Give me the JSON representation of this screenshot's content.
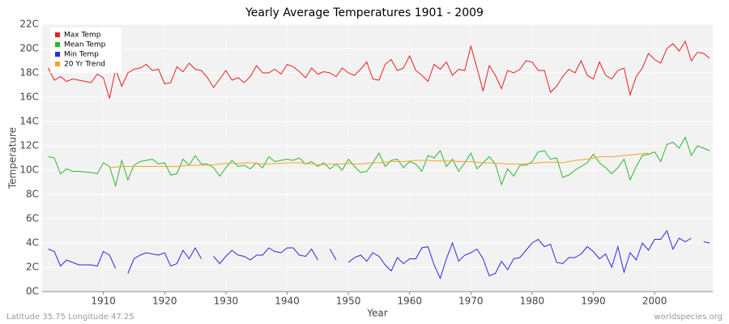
{
  "chart_data": {
    "type": "line",
    "title": "Yearly Average Temperatures 1901 - 2009",
    "x_label": "Year",
    "y_label": "Temperature",
    "footer_left": "Latitude 35.75 Longitude 47.25",
    "footer_right": "worldspecies.org",
    "x": [
      1901,
      1902,
      1903,
      1904,
      1905,
      1906,
      1907,
      1908,
      1909,
      1910,
      1911,
      1912,
      1913,
      1914,
      1915,
      1916,
      1917,
      1918,
      1919,
      1920,
      1921,
      1922,
      1923,
      1924,
      1925,
      1926,
      1927,
      1928,
      1929,
      1930,
      1931,
      1932,
      1933,
      1934,
      1935,
      1936,
      1937,
      1938,
      1939,
      1940,
      1941,
      1942,
      1943,
      1944,
      1945,
      1946,
      1947,
      1948,
      1949,
      1950,
      1951,
      1952,
      1953,
      1954,
      1955,
      1956,
      1957,
      1958,
      1959,
      1960,
      1961,
      1962,
      1963,
      1964,
      1965,
      1966,
      1967,
      1968,
      1969,
      1970,
      1971,
      1972,
      1973,
      1974,
      1975,
      1976,
      1977,
      1978,
      1979,
      1980,
      1981,
      1982,
      1983,
      1984,
      1985,
      1986,
      1987,
      1988,
      1989,
      1990,
      1991,
      1992,
      1993,
      1994,
      1995,
      1996,
      1997,
      1998,
      1999,
      2000,
      2001,
      2002,
      2003,
      2004,
      2005,
      2006,
      2007,
      2008,
      2009
    ],
    "xlim": [
      1900,
      2009.5
    ],
    "xticks": [
      1910,
      1920,
      1930,
      1940,
      1950,
      1960,
      1970,
      1980,
      1990,
      2000
    ],
    "ylim": [
      0,
      22
    ],
    "yticks": [
      {
        "value": 0,
        "label": "0C"
      },
      {
        "value": 2,
        "label": "2C"
      },
      {
        "value": 4,
        "label": "4C"
      },
      {
        "value": 6,
        "label": "6C"
      },
      {
        "value": 8,
        "label": "8C"
      },
      {
        "value": 10,
        "label": "10C"
      },
      {
        "value": 12,
        "label": "12C"
      },
      {
        "value": 14,
        "label": "14C"
      },
      {
        "value": 16,
        "label": "16C"
      },
      {
        "value": 18,
        "label": "18C"
      },
      {
        "value": 20,
        "label": "20C"
      },
      {
        "value": 22,
        "label": "22C"
      }
    ],
    "grid": true,
    "legend": "top-left",
    "series": [
      {
        "name": "Max Temp",
        "color": "#e8201f",
        "values": [
          18.4,
          17.4,
          17.7,
          17.3,
          17.5,
          17.4,
          17.3,
          17.2,
          17.9,
          17.6,
          15.9,
          18.3,
          16.9,
          18.0,
          18.3,
          18.4,
          18.7,
          18.2,
          18.3,
          17.1,
          17.2,
          18.5,
          18.1,
          18.8,
          18.3,
          18.2,
          17.6,
          16.8,
          17.5,
          18.2,
          17.4,
          17.6,
          17.2,
          17.7,
          18.6,
          18.0,
          18.0,
          18.3,
          17.9,
          18.7,
          18.5,
          18.1,
          17.6,
          18.4,
          17.9,
          18.1,
          18.0,
          17.7,
          18.4,
          18.0,
          17.8,
          18.3,
          18.9,
          17.5,
          17.4,
          18.7,
          19.1,
          18.2,
          18.4,
          19.4,
          18.2,
          17.8,
          17.3,
          18.7,
          18.3,
          18.9,
          17.8,
          18.3,
          18.2,
          20.2,
          18.4,
          16.5,
          18.6,
          17.8,
          16.7,
          18.2,
          18.0,
          18.3,
          19.0,
          18.9,
          18.2,
          18.2,
          16.4,
          16.9,
          17.7,
          18.3,
          18.0,
          19.0,
          17.8,
          17.5,
          18.9,
          17.8,
          17.5,
          18.2,
          18.4,
          16.2,
          17.7,
          18.4,
          19.6,
          19.1,
          18.8,
          20.0,
          20.4,
          19.8,
          20.6,
          19.0,
          19.7,
          19.6,
          19.2
        ]
      },
      {
        "name": "Mean Temp",
        "color": "#2db82d",
        "values": [
          11.1,
          11.0,
          9.7,
          10.1,
          9.9,
          9.9,
          9.85,
          9.8,
          9.7,
          10.6,
          10.3,
          8.7,
          10.8,
          9.2,
          10.4,
          10.7,
          10.8,
          10.9,
          10.5,
          10.6,
          9.6,
          9.7,
          10.9,
          10.4,
          11.2,
          10.5,
          10.5,
          10.2,
          9.5,
          10.2,
          10.8,
          10.3,
          10.4,
          10.1,
          10.6,
          10.2,
          11.1,
          10.7,
          10.8,
          10.9,
          10.8,
          11.0,
          10.5,
          10.7,
          10.3,
          10.6,
          10.1,
          10.5,
          10.0,
          10.9,
          10.3,
          9.8,
          9.9,
          10.6,
          11.4,
          10.3,
          10.8,
          10.9,
          10.2,
          10.7,
          10.5,
          9.9,
          11.2,
          11.0,
          11.6,
          10.3,
          10.9,
          9.9,
          10.6,
          11.4,
          10.1,
          10.6,
          11.1,
          10.5,
          8.8,
          10.1,
          9.5,
          10.4,
          10.4,
          10.7,
          11.5,
          11.6,
          10.9,
          11.0,
          9.4,
          9.6,
          10.0,
          10.3,
          10.6,
          11.3,
          10.6,
          10.2,
          9.7,
          10.2,
          10.9,
          9.2,
          10.3,
          11.2,
          11.3,
          11.5,
          10.7,
          12.1,
          12.3,
          11.8,
          12.7,
          11.2,
          12.0,
          11.8,
          11.6
        ]
      },
      {
        "name": "Min Temp",
        "color": "#2a2ae0",
        "values": [
          3.5,
          3.3,
          2.1,
          2.6,
          2.4,
          2.2,
          2.2,
          2.2,
          2.1,
          3.3,
          3.0,
          1.9,
          null,
          1.5,
          2.7,
          3.0,
          3.2,
          3.1,
          3.0,
          3.2,
          2.1,
          2.3,
          3.4,
          2.7,
          3.6,
          2.7,
          null,
          2.9,
          2.3,
          2.9,
          3.4,
          3.0,
          2.9,
          2.6,
          3.0,
          3.0,
          3.6,
          3.3,
          3.2,
          3.6,
          3.6,
          3.0,
          2.9,
          3.5,
          2.6,
          null,
          3.5,
          2.6,
          null,
          2.4,
          2.8,
          3.0,
          2.5,
          3.2,
          2.9,
          2.2,
          1.7,
          2.8,
          2.3,
          2.7,
          2.7,
          3.6,
          3.7,
          2.2,
          1.1,
          2.7,
          4.0,
          2.5,
          3.0,
          3.2,
          3.5,
          2.7,
          1.3,
          1.5,
          2.5,
          1.8,
          2.7,
          2.8,
          3.4,
          4.0,
          4.3,
          3.7,
          3.9,
          2.4,
          2.3,
          2.8,
          2.8,
          3.1,
          3.7,
          3.3,
          2.7,
          3.1,
          2.0,
          3.7,
          1.6,
          3.2,
          2.6,
          4.0,
          3.4,
          4.3,
          4.3,
          5.0,
          3.5,
          4.4,
          4.1,
          4.4,
          null,
          4.1,
          4.0
        ]
      },
      {
        "name": "20 Yr Trend",
        "color": "#f5a623",
        "values": [
          null,
          null,
          null,
          null,
          null,
          null,
          null,
          null,
          null,
          null,
          10.2,
          10.25,
          10.3,
          10.3,
          10.3,
          10.3,
          10.3,
          10.3,
          10.3,
          10.3,
          10.3,
          10.3,
          10.35,
          10.4,
          10.4,
          10.4,
          10.4,
          10.45,
          10.5,
          10.55,
          10.55,
          10.55,
          10.6,
          10.6,
          10.55,
          10.5,
          10.5,
          10.55,
          10.55,
          10.6,
          10.6,
          10.6,
          10.55,
          10.5,
          10.45,
          10.45,
          10.5,
          10.5,
          10.5,
          10.55,
          10.5,
          10.5,
          10.55,
          10.6,
          10.6,
          10.65,
          10.7,
          10.7,
          10.7,
          10.75,
          10.8,
          10.8,
          10.8,
          10.75,
          10.75,
          10.75,
          10.75,
          10.7,
          10.7,
          10.7,
          10.65,
          10.6,
          10.6,
          10.55,
          10.55,
          10.5,
          10.5,
          10.5,
          10.5,
          10.55,
          10.6,
          10.65,
          10.65,
          10.65,
          10.6,
          10.7,
          10.8,
          10.85,
          10.9,
          11.0,
          11.1,
          11.1,
          11.1,
          11.15,
          11.2,
          11.25,
          11.3,
          11.35,
          11.4,
          null,
          null,
          null,
          null,
          null,
          null,
          null,
          null,
          null,
          null
        ]
      }
    ]
  }
}
